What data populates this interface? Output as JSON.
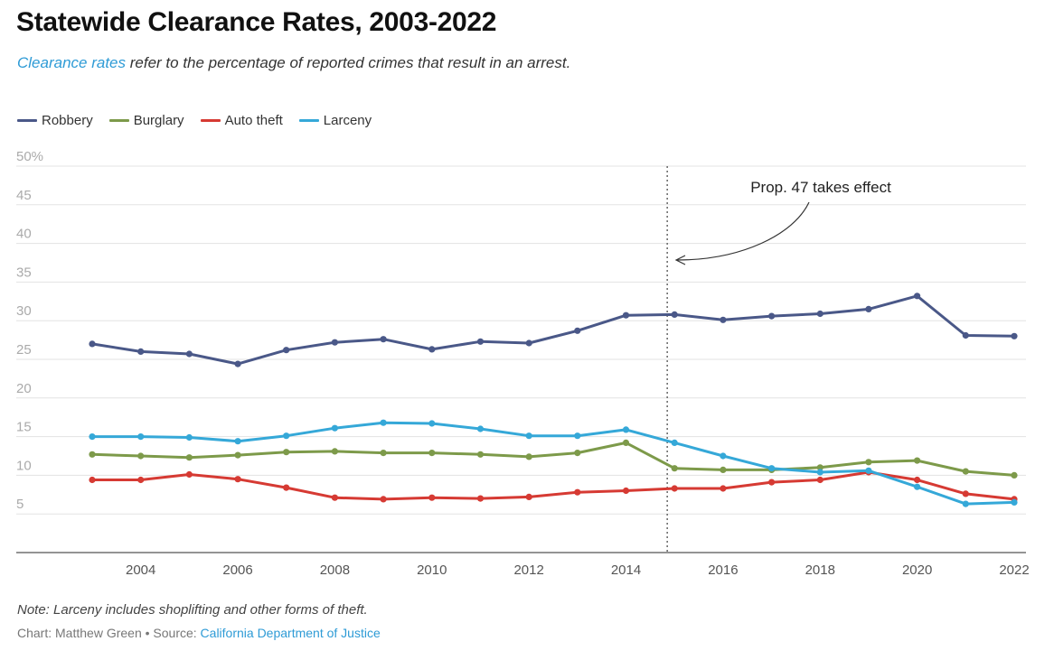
{
  "header": {
    "title": "Statewide Clearance Rates, 2003-2022",
    "subtitle_link": "Clearance rates",
    "subtitle_rest": " refer to the percentage of reported crimes that result in an arrest."
  },
  "footer": {
    "note": "Note: Larceny includes shoplifting and other forms of theft.",
    "credit_prefix": "Chart: Matthew Green • Source: ",
    "credit_source": "California Department of Justice"
  },
  "chart_data": {
    "type": "line",
    "title": "Statewide Clearance Rates, 2003-2022",
    "xlabel": "",
    "ylabel": "",
    "x": [
      2003,
      2004,
      2005,
      2006,
      2007,
      2008,
      2009,
      2010,
      2011,
      2012,
      2013,
      2014,
      2015,
      2016,
      2017,
      2018,
      2019,
      2020,
      2021,
      2022
    ],
    "xticks": [
      "2004",
      "2006",
      "2008",
      "2010",
      "2012",
      "2014",
      "2016",
      "2018",
      "2020",
      "2022"
    ],
    "yticks": [
      "50%",
      "45",
      "40",
      "35",
      "30",
      "25",
      "20",
      "15",
      "10",
      "5"
    ],
    "ylim": [
      0,
      50
    ],
    "grid": true,
    "legend_position": "top-left",
    "series": [
      {
        "name": "Robbery",
        "color": "#4a5888",
        "values": [
          27.0,
          26.0,
          25.7,
          24.4,
          26.2,
          27.2,
          27.6,
          26.3,
          27.3,
          27.1,
          28.7,
          30.7,
          30.8,
          30.1,
          30.6,
          30.9,
          31.5,
          33.2,
          28.1,
          28.0
        ]
      },
      {
        "name": "Burglary",
        "color": "#7d9a4a",
        "values": [
          12.7,
          12.5,
          12.3,
          12.6,
          13.0,
          13.1,
          12.9,
          12.9,
          12.7,
          12.4,
          12.9,
          14.2,
          10.9,
          10.7,
          10.7,
          11.0,
          11.7,
          11.9,
          10.5,
          10.0
        ]
      },
      {
        "name": "Auto theft",
        "color": "#d63a33",
        "values": [
          9.4,
          9.4,
          10.1,
          9.5,
          8.4,
          7.1,
          6.9,
          7.1,
          7.0,
          7.2,
          7.8,
          8.0,
          8.3,
          8.3,
          9.1,
          9.4,
          10.4,
          9.4,
          7.6,
          6.9
        ]
      },
      {
        "name": "Larceny",
        "color": "#35a8d8",
        "values": [
          15.0,
          15.0,
          14.9,
          14.4,
          15.1,
          16.1,
          16.8,
          16.7,
          16.0,
          15.1,
          15.1,
          15.9,
          14.2,
          12.5,
          10.9,
          10.4,
          10.6,
          8.5,
          6.3,
          6.5
        ]
      }
    ],
    "annotation": {
      "text": "Prop. 47 takes effect",
      "x": 2014.85
    }
  }
}
